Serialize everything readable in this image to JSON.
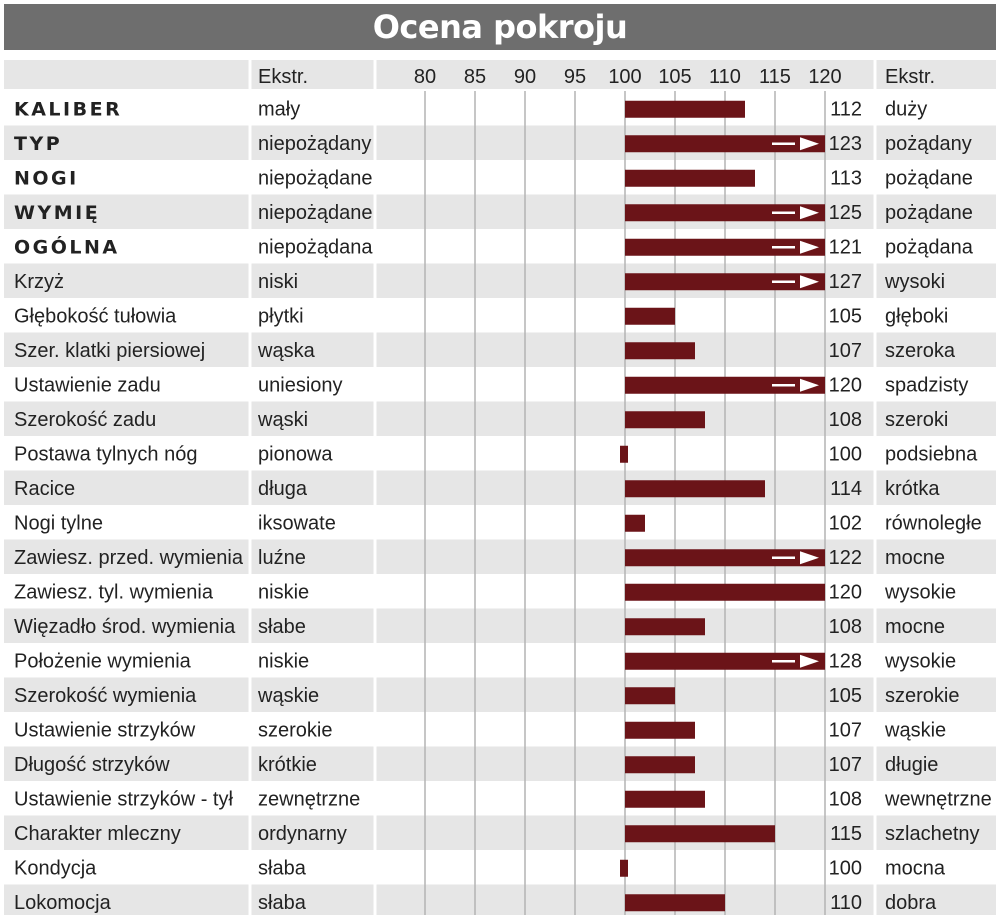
{
  "chart_data": {
    "type": "bar",
    "title": "Ocena pokroju",
    "left_header": "Ekstr.",
    "right_header": "Ekstr.",
    "xlim": [
      80,
      120
    ],
    "ticks": [
      80,
      85,
      90,
      95,
      100,
      105,
      110,
      115,
      120
    ],
    "baseline": 100,
    "rows": [
      {
        "trait": "KALIBER",
        "bold": true,
        "left": "mały",
        "value": 112,
        "right": "duży"
      },
      {
        "trait": "TYP",
        "bold": true,
        "left": "niepożądany",
        "value": 123,
        "right": "pożądany"
      },
      {
        "trait": "NOGI",
        "bold": true,
        "left": "niepożądane",
        "value": 113,
        "right": "pożądane"
      },
      {
        "trait": "WYMIĘ",
        "bold": true,
        "left": "niepożądane",
        "value": 125,
        "right": "pożądane"
      },
      {
        "trait": "OGÓLNA",
        "bold": true,
        "left": "niepożądana",
        "value": 121,
        "right": "pożądana"
      },
      {
        "trait": "Krzyż",
        "bold": false,
        "left": "niski",
        "value": 127,
        "right": "wysoki"
      },
      {
        "trait": "Głębokość tułowia",
        "bold": false,
        "left": "płytki",
        "value": 105,
        "right": "głęboki"
      },
      {
        "trait": "Szer. klatki piersiowej",
        "bold": false,
        "left": "wąska",
        "value": 107,
        "right": "szeroka"
      },
      {
        "trait": "Ustawienie zadu",
        "bold": false,
        "left": "uniesiony",
        "value": 120,
        "right": "spadzisty",
        "arrow": true
      },
      {
        "trait": "Szerokość zadu",
        "bold": false,
        "left": "wąski",
        "value": 108,
        "right": "szeroki"
      },
      {
        "trait": "Postawa tylnych nóg",
        "bold": false,
        "left": "pionowa",
        "value": 100,
        "right": "podsiebna"
      },
      {
        "trait": "Racice",
        "bold": false,
        "left": "długa",
        "value": 114,
        "right": "krótka"
      },
      {
        "trait": "Nogi tylne",
        "bold": false,
        "left": "iksowate",
        "value": 102,
        "right": "równoległe"
      },
      {
        "trait": "Zawiesz. przed. wymienia",
        "bold": false,
        "left": "luźne",
        "value": 122,
        "right": "mocne"
      },
      {
        "trait": "Zawiesz. tyl. wymienia",
        "bold": false,
        "left": "niskie",
        "value": 120,
        "right": "wysokie"
      },
      {
        "trait": "Więzadło środ. wymienia",
        "bold": false,
        "left": "słabe",
        "value": 108,
        "right": "mocne"
      },
      {
        "trait": "Położenie wymienia",
        "bold": false,
        "left": "niskie",
        "value": 128,
        "right": "wysokie"
      },
      {
        "trait": "Szerokość wymienia",
        "bold": false,
        "left": "wąskie",
        "value": 105,
        "right": "szerokie"
      },
      {
        "trait": "Ustawienie strzyków",
        "bold": false,
        "left": "szerokie",
        "value": 107,
        "right": "wąskie"
      },
      {
        "trait": "Długość strzyków",
        "bold": false,
        "left": "krótkie",
        "value": 107,
        "right": "długie"
      },
      {
        "trait": "Ustawienie strzyków - tył",
        "bold": false,
        "left": "zewnętrzne",
        "value": 108,
        "right": "wewnętrzne"
      },
      {
        "trait": "Charakter mleczny",
        "bold": false,
        "left": "ordynarny",
        "value": 115,
        "right": "szlachetny"
      },
      {
        "trait": "Kondycja",
        "bold": false,
        "left": "słaba",
        "value": 100,
        "right": "mocna"
      },
      {
        "trait": "Lokomocja",
        "bold": false,
        "left": "słaba",
        "value": 110,
        "right": "dobra"
      }
    ],
    "colors": {
      "bar": "#6b1418",
      "row_shade": "#e6e6e6",
      "grid": "#b4b4b4",
      "title_bg": "#6e6e6e"
    }
  }
}
